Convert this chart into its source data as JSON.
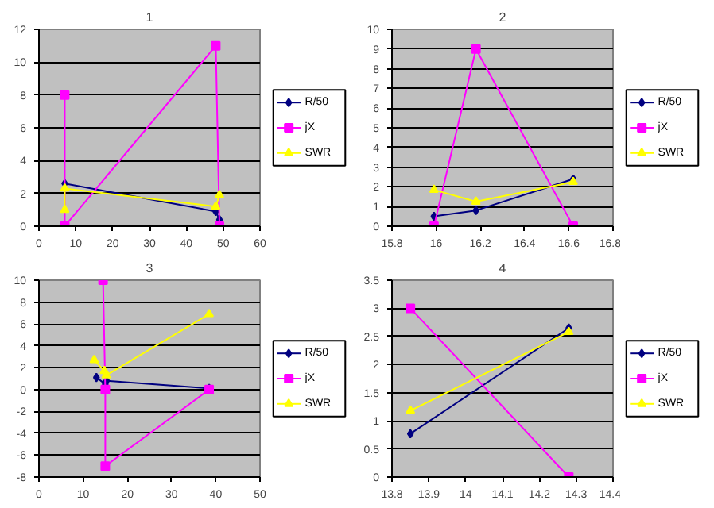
{
  "chart_data": [
    {
      "type": "line",
      "title": "1",
      "xlim": [
        0,
        60
      ],
      "xticks": [
        0,
        10,
        20,
        30,
        40,
        50,
        60
      ],
      "ylim": [
        0,
        12
      ],
      "yticks": [
        0,
        2,
        4,
        6,
        8,
        10,
        12
      ],
      "grid": "y",
      "legend": "right",
      "series": [
        {
          "name": "R/50",
          "color": "#000080",
          "marker": "diamond",
          "x": [
            7,
            48,
            49
          ],
          "values": [
            2.6,
            0.9,
            0.4
          ]
        },
        {
          "name": "jX",
          "color": "#ff00ff",
          "marker": "square",
          "x": [
            7,
            7,
            48,
            49
          ],
          "values": [
            8,
            0,
            11,
            0
          ]
        },
        {
          "name": "SWR",
          "color": "#ffff00",
          "marker": "triangle",
          "x": [
            7,
            7,
            48,
            49
          ],
          "values": [
            1.0,
            2.3,
            1.2,
            1.9
          ]
        }
      ]
    },
    {
      "type": "line",
      "title": "2",
      "xlim": [
        15.8,
        16.8
      ],
      "xticks": [
        15.8,
        16,
        16.2,
        16.4,
        16.6,
        16.8
      ],
      "ylim": [
        0,
        10
      ],
      "yticks": [
        0,
        1,
        2,
        3,
        4,
        5,
        6,
        7,
        8,
        9,
        10
      ],
      "grid": "y",
      "legend": "right",
      "series": [
        {
          "name": "R/50",
          "color": "#000080",
          "marker": "diamond",
          "x": [
            15.99,
            16.18,
            16.62
          ],
          "values": [
            0.5,
            0.8,
            2.4
          ]
        },
        {
          "name": "jX",
          "color": "#ff00ff",
          "marker": "square",
          "x": [
            15.99,
            16.18,
            16.62
          ],
          "values": [
            0,
            9,
            0
          ]
        },
        {
          "name": "SWR",
          "color": "#ffff00",
          "marker": "triangle",
          "x": [
            15.99,
            16.18,
            16.62
          ],
          "values": [
            1.85,
            1.25,
            2.25
          ]
        }
      ]
    },
    {
      "type": "line",
      "title": "3",
      "xlim": [
        0,
        50
      ],
      "xticks": [
        0,
        10,
        20,
        30,
        40,
        50
      ],
      "ylim": [
        -8,
        10
      ],
      "yticks": [
        -8,
        -6,
        -4,
        -2,
        0,
        2,
        4,
        6,
        8,
        10
      ],
      "grid": "y",
      "legend": "right",
      "series": [
        {
          "name": "R/50",
          "color": "#000080",
          "marker": "diamond",
          "x": [
            13,
            15,
            15.3,
            38.5
          ],
          "values": [
            1.1,
            0.5,
            0.8,
            0.1
          ]
        },
        {
          "name": "jX",
          "color": "#ff00ff",
          "marker": "square",
          "x": [
            14.5,
            15,
            15,
            38.5
          ],
          "values": [
            10,
            0,
            -7,
            0
          ]
        },
        {
          "name": "SWR",
          "color": "#ffff00",
          "marker": "triangle",
          "x": [
            12.5,
            14.8,
            15.2,
            38.5
          ],
          "values": [
            2.7,
            1.7,
            1.3,
            6.9
          ]
        }
      ]
    },
    {
      "type": "line",
      "title": "4",
      "xlim": [
        13.8,
        14.4
      ],
      "xticks": [
        13.8,
        13.9,
        14,
        14.1,
        14.2,
        14.3,
        14.4
      ],
      "ylim": [
        0,
        3.5
      ],
      "yticks": [
        0,
        0.5,
        1,
        1.5,
        2,
        2.5,
        3,
        3.5
      ],
      "grid": "y",
      "legend": "right",
      "series": [
        {
          "name": "R/50",
          "color": "#000080",
          "marker": "diamond",
          "x": [
            13.85,
            14.28
          ],
          "values": [
            0.77,
            2.65
          ]
        },
        {
          "name": "jX",
          "color": "#ff00ff",
          "marker": "square",
          "x": [
            13.85,
            14.28
          ],
          "values": [
            3.0,
            0
          ]
        },
        {
          "name": "SWR",
          "color": "#ffff00",
          "marker": "triangle",
          "x": [
            13.85,
            14.28
          ],
          "values": [
            1.18,
            2.58
          ]
        }
      ]
    }
  ]
}
